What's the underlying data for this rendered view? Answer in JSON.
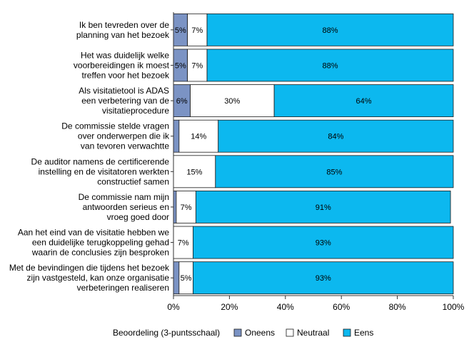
{
  "chart_data": {
    "type": "bar",
    "orientation": "horizontal",
    "stacked": true,
    "categories": [
      [
        "Ik ben tevreden over de",
        "planning van het bezoek"
      ],
      [
        "Het was duidelijk welke",
        "voorbereidingen ik moest",
        "treffen voor het bezoek"
      ],
      [
        "Als visitatietool is ADAS",
        "een verbetering van de",
        "visitatieprocedure"
      ],
      [
        "De commissie stelde vragen",
        "over onderwerpen die ik",
        "van tevoren verwachtte"
      ],
      [
        "De auditor namens de certificerende",
        "instelling en de visitatoren werkten",
        "constructief samen"
      ],
      [
        "De commissie nam mijn",
        "antwoorden serieus en",
        "vroeg goed door"
      ],
      [
        "Aan het eind van de visitatie hebben we",
        "een duidelijke terugkoppeling gehad",
        "waarin de conclusies zijn besproken"
      ],
      [
        "Met de bevindingen die tijdens het bezoek",
        "zijn vastgesteld, kan onze organisatie",
        "verbeteringen realiseren"
      ]
    ],
    "series": [
      {
        "name": "Oneens",
        "color": "#7b93c4",
        "values": [
          5,
          5,
          6,
          2,
          0,
          1,
          0,
          2
        ],
        "labels": [
          "5%",
          "5%",
          "6%",
          "",
          "",
          "",
          "",
          ""
        ]
      },
      {
        "name": "Neutraal",
        "color": "#ffffff",
        "values": [
          7,
          7,
          30,
          14,
          15,
          7,
          7,
          5
        ],
        "labels": [
          "7%",
          "7%",
          "30%",
          "14%",
          "15%",
          "7%",
          "7%",
          "5%"
        ]
      },
      {
        "name": "Eens",
        "color": "#0cb8ef",
        "values": [
          88,
          88,
          64,
          84,
          85,
          91,
          93,
          93
        ],
        "labels": [
          "88%",
          "88%",
          "64%",
          "84%",
          "85%",
          "91%",
          "93%",
          "93%"
        ]
      }
    ],
    "xlim": [
      0,
      100
    ],
    "xticks": [
      {
        "value": 0,
        "label": "0%"
      },
      {
        "value": 20,
        "label": "20%"
      },
      {
        "value": 40,
        "label": "40%"
      },
      {
        "value": 60,
        "label": "60%"
      },
      {
        "value": 80,
        "label": "80%"
      },
      {
        "value": 100,
        "label": "100%"
      }
    ],
    "legend_title": "Beoordeling (3-puntsschaal)",
    "legend_position": "bottom",
    "grid": false
  }
}
